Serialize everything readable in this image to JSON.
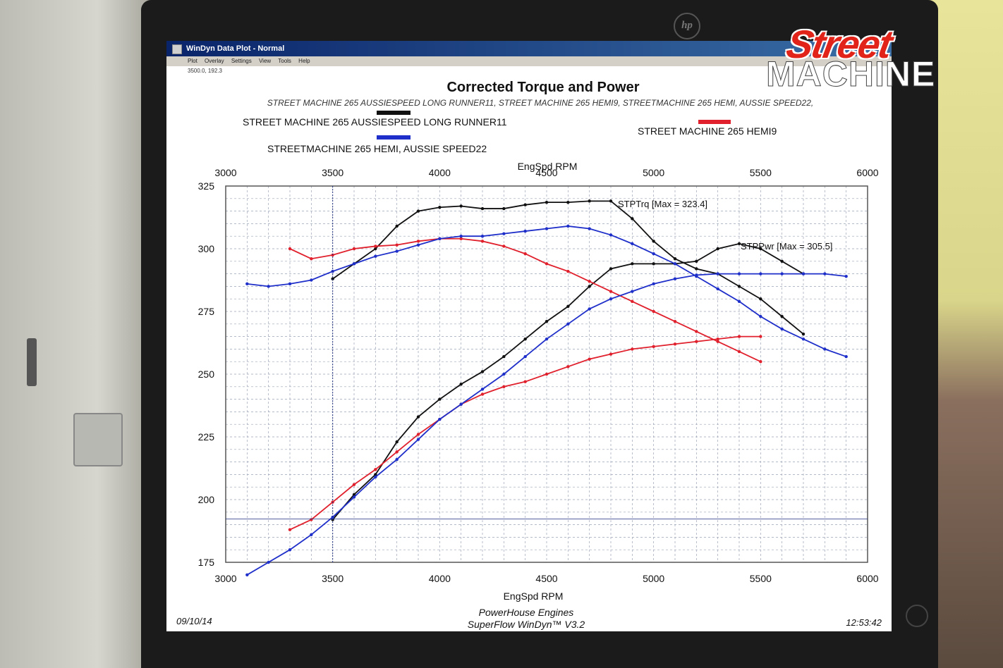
{
  "window": {
    "title": "WinDyn Data Plot - Normal",
    "menu": [
      "Plot",
      "Overlay",
      "Settings",
      "View",
      "Tools",
      "Help"
    ],
    "cursor_readout": "3500.0, 192.3"
  },
  "monitor": {
    "brand": "hp"
  },
  "brand": {
    "line1": "Street",
    "line2": "MACHINE"
  },
  "colors": {
    "black": "#111111",
    "red": "#e0202c",
    "blue": "#1f2fc9",
    "grid": "#9aa3b5"
  },
  "chart_data": {
    "type": "line",
    "title": "Corrected Torque and Power",
    "subtitle": "STREET MACHINE 265 AUSSIESPEED LONG RUNNER11, STREET MACHINE 265 HEMI9, STREETMACHINE 265 HEMI, AUSSIE SPEED22,",
    "xlabel": "EngSpd RPM",
    "xlabel_top": "EngSpd RPM",
    "xlim": [
      3000,
      6000
    ],
    "ylim": [
      175,
      325
    ],
    "xticks": [
      "3000",
      "3500",
      "4000",
      "4500",
      "5000",
      "5500",
      "6000"
    ],
    "yticks": [
      "175",
      "200",
      "225",
      "250",
      "275",
      "300",
      "325"
    ],
    "grid": true,
    "legend": [
      {
        "name": "STREET MACHINE 265 AUSSIESPEED LONG RUNNER11",
        "color": "#111111"
      },
      {
        "name": "STREET MACHINE 265 HEMI9",
        "color": "#e0202c"
      },
      {
        "name": "STREETMACHINE 265 HEMI, AUSSIE SPEED22",
        "color": "#1f2fc9"
      }
    ],
    "annotations": [
      "STPTrq [Max = 323.4]",
      "STPPwr [Max = 305.5]"
    ],
    "cursor": {
      "x": 3500,
      "y": 192.3
    },
    "series": [
      {
        "name": "STREET MACHINE 265 AUSSIESPEED LONG RUNNER11",
        "color": "#111111",
        "kind": "torque",
        "x": [
          3500,
          3600,
          3700,
          3800,
          3900,
          4000,
          4100,
          4200,
          4300,
          4400,
          4500,
          4600,
          4700,
          4800,
          4900,
          5000,
          5100,
          5200,
          5300,
          5400,
          5500,
          5600,
          5700
        ],
        "y": [
          288,
          294,
          300,
          309,
          315,
          316.5,
          317,
          316,
          316,
          317.5,
          318.5,
          318.5,
          319,
          319,
          312,
          303,
          296,
          292,
          290,
          285,
          280,
          273,
          266
        ]
      },
      {
        "name": "STREET MACHINE 265 AUSSIESPEED LONG RUNNER11",
        "color": "#111111",
        "kind": "power",
        "x": [
          3500,
          3600,
          3700,
          3800,
          3900,
          4000,
          4100,
          4200,
          4300,
          4400,
          4500,
          4600,
          4700,
          4800,
          4900,
          5000,
          5100,
          5200,
          5300,
          5400,
          5500,
          5600,
          5700
        ],
        "y": [
          192,
          202,
          210,
          223,
          233,
          240,
          246,
          251,
          257,
          264,
          271,
          277,
          285,
          292,
          294,
          294,
          294,
          295,
          300,
          302,
          300,
          295,
          290
        ]
      },
      {
        "name": "STREET MACHINE 265 HEMI9",
        "color": "#e0202c",
        "kind": "torque",
        "x": [
          3300,
          3400,
          3500,
          3600,
          3700,
          3800,
          3900,
          4000,
          4100,
          4200,
          4300,
          4400,
          4500,
          4600,
          4700,
          4800,
          4900,
          5000,
          5100,
          5200,
          5300,
          5400,
          5500
        ],
        "y": [
          300,
          296,
          297.5,
          300,
          301,
          301.5,
          303,
          304,
          304,
          303,
          301,
          298,
          294,
          291,
          287,
          283,
          279,
          275,
          271,
          267,
          263,
          259,
          255
        ]
      },
      {
        "name": "STREET MACHINE 265 HEMI9",
        "color": "#e0202c",
        "kind": "power",
        "x": [
          3300,
          3400,
          3500,
          3600,
          3700,
          3800,
          3900,
          4000,
          4100,
          4200,
          4300,
          4400,
          4500,
          4600,
          4700,
          4800,
          4900,
          5000,
          5100,
          5200,
          5300,
          5400,
          5500
        ],
        "y": [
          188,
          192,
          199,
          206,
          212,
          219,
          226,
          232,
          238,
          242,
          245,
          247,
          250,
          253,
          256,
          258,
          260,
          261,
          262,
          263,
          264,
          265,
          265
        ]
      },
      {
        "name": "STREETMACHINE 265 HEMI, AUSSIE SPEED22",
        "color": "#1f2fc9",
        "kind": "torque",
        "x": [
          3100,
          3200,
          3300,
          3400,
          3500,
          3600,
          3700,
          3800,
          3900,
          4000,
          4100,
          4200,
          4300,
          4400,
          4500,
          4600,
          4700,
          4800,
          4900,
          5000,
          5100,
          5200,
          5300,
          5400,
          5500,
          5600,
          5700,
          5800,
          5900
        ],
        "y": [
          286,
          285,
          286,
          287.5,
          291,
          294,
          297,
          299,
          301.5,
          304,
          305,
          305,
          306,
          307,
          308,
          309,
          308,
          305.5,
          302,
          298,
          294,
          289,
          284,
          279,
          273,
          268,
          264,
          260,
          257
        ]
      },
      {
        "name": "STREETMACHINE 265 HEMI, AUSSIE SPEED22",
        "color": "#1f2fc9",
        "kind": "power",
        "x": [
          3100,
          3200,
          3300,
          3400,
          3500,
          3600,
          3700,
          3800,
          3900,
          4000,
          4100,
          4200,
          4300,
          4400,
          4500,
          4600,
          4700,
          4800,
          4900,
          5000,
          5100,
          5200,
          5300,
          5400,
          5500,
          5600,
          5700,
          5800,
          5900
        ],
        "y": [
          170,
          175,
          180,
          186,
          193,
          201,
          209,
          216,
          224,
          232,
          238,
          244,
          250,
          257,
          264,
          270,
          276,
          280,
          283,
          286,
          288,
          289.5,
          290,
          290,
          290,
          290,
          290,
          290,
          289
        ]
      }
    ]
  },
  "footer": {
    "date": "09/10/14",
    "line1": "PowerHouse Engines",
    "line2": "SuperFlow WinDyn™ V3.2",
    "time": "12:53:42"
  }
}
